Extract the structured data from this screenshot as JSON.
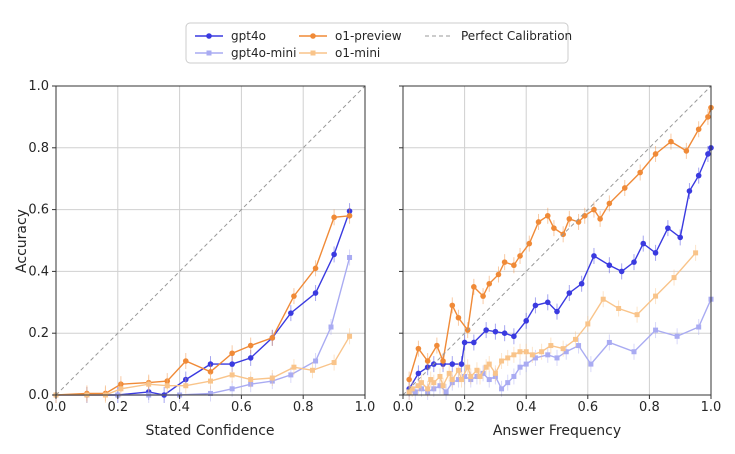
{
  "chart_data": [
    {
      "type": "line",
      "xlabel": "Stated Confidence",
      "ylabel": "Accuracy",
      "xlim": [
        0.0,
        1.0
      ],
      "ylim": [
        0.0,
        1.0
      ],
      "xticks": [
        "0.0",
        "0.2",
        "0.4",
        "0.6",
        "0.8",
        "1.0"
      ],
      "yticks": [
        "0.0",
        "0.2",
        "0.4",
        "0.6",
        "0.8",
        "1.0"
      ],
      "grid": true,
      "series": [
        {
          "name": "gpt4o",
          "color": "#3a3ae0",
          "marker": "circle",
          "x": [
            0.0,
            0.1,
            0.2,
            0.3,
            0.35,
            0.42,
            0.5,
            0.57,
            0.63,
            0.7,
            0.76,
            0.84,
            0.9,
            0.95
          ],
          "y": [
            0.0,
            0.0,
            0.0,
            0.01,
            0.0,
            0.05,
            0.1,
            0.1,
            0.12,
            0.185,
            0.265,
            0.33,
            0.455,
            0.595
          ]
        },
        {
          "name": "gpt4o-mini",
          "color": "#a9abf2",
          "marker": "square",
          "x": [
            0.0,
            0.1,
            0.2,
            0.3,
            0.4,
            0.5,
            0.57,
            0.63,
            0.7,
            0.76,
            0.84,
            0.89,
            0.95
          ],
          "y": [
            0.0,
            0.0,
            0.0,
            0.0,
            0.0,
            0.005,
            0.02,
            0.035,
            0.045,
            0.065,
            0.11,
            0.22,
            0.445
          ]
        },
        {
          "name": "o1-preview",
          "color": "#f08a37",
          "marker": "circle",
          "x": [
            0.0,
            0.1,
            0.16,
            0.21,
            0.3,
            0.36,
            0.42,
            0.5,
            0.57,
            0.63,
            0.7,
            0.77,
            0.84,
            0.9,
            0.95
          ],
          "y": [
            0.0,
            0.005,
            0.005,
            0.035,
            0.04,
            0.045,
            0.11,
            0.075,
            0.135,
            0.16,
            0.185,
            0.32,
            0.41,
            0.575,
            0.58
          ]
        },
        {
          "name": "o1-mini",
          "color": "#f9c48a",
          "marker": "square",
          "x": [
            0.0,
            0.1,
            0.16,
            0.21,
            0.3,
            0.36,
            0.42,
            0.5,
            0.57,
            0.63,
            0.7,
            0.77,
            0.83,
            0.9,
            0.95
          ],
          "y": [
            0.0,
            0.0,
            0.0,
            0.02,
            0.035,
            0.03,
            0.03,
            0.045,
            0.065,
            0.05,
            0.055,
            0.09,
            0.08,
            0.105,
            0.19
          ]
        },
        {
          "name": "Perfect Calibration",
          "color": "#999999",
          "dashed": true,
          "x": [
            0.0,
            1.0
          ],
          "y": [
            0.0,
            1.0
          ]
        }
      ]
    },
    {
      "type": "line",
      "xlabel": "Answer Frequency",
      "ylabel": "",
      "xlim": [
        0.0,
        1.0
      ],
      "ylim": [
        0.0,
        1.0
      ],
      "xticks": [
        "0.0",
        "0.2",
        "0.4",
        "0.6",
        "0.8",
        "1.0"
      ],
      "grid": true,
      "series": [
        {
          "name": "gpt4o",
          "color": "#3a3ae0",
          "marker": "circle",
          "x": [
            0.02,
            0.05,
            0.08,
            0.1,
            0.13,
            0.16,
            0.19,
            0.2,
            0.23,
            0.27,
            0.3,
            0.33,
            0.36,
            0.4,
            0.43,
            0.47,
            0.5,
            0.54,
            0.58,
            0.62,
            0.67,
            0.71,
            0.75,
            0.78,
            0.82,
            0.86,
            0.9,
            0.93,
            0.96,
            0.99,
            1.0
          ],
          "y": [
            0.02,
            0.07,
            0.09,
            0.1,
            0.1,
            0.1,
            0.1,
            0.17,
            0.17,
            0.21,
            0.205,
            0.2,
            0.19,
            0.24,
            0.29,
            0.3,
            0.27,
            0.33,
            0.36,
            0.45,
            0.42,
            0.4,
            0.43,
            0.49,
            0.46,
            0.54,
            0.51,
            0.66,
            0.71,
            0.78,
            0.8
          ]
        },
        {
          "name": "gpt4o-mini",
          "color": "#a9abf2",
          "marker": "square",
          "x": [
            0.02,
            0.04,
            0.06,
            0.08,
            0.1,
            0.12,
            0.14,
            0.16,
            0.18,
            0.2,
            0.22,
            0.24,
            0.26,
            0.28,
            0.3,
            0.32,
            0.34,
            0.36,
            0.38,
            0.4,
            0.43,
            0.47,
            0.5,
            0.53,
            0.57,
            0.61,
            0.67,
            0.75,
            0.82,
            0.89,
            0.96,
            1.0
          ],
          "y": [
            0.01,
            0.01,
            0.02,
            0.01,
            0.02,
            0.03,
            0.01,
            0.04,
            0.05,
            0.06,
            0.05,
            0.06,
            0.07,
            0.05,
            0.06,
            0.02,
            0.04,
            0.06,
            0.09,
            0.1,
            0.12,
            0.13,
            0.12,
            0.14,
            0.16,
            0.1,
            0.17,
            0.14,
            0.21,
            0.19,
            0.22,
            0.31
          ]
        },
        {
          "name": "o1-preview",
          "color": "#f08a37",
          "marker": "circle",
          "x": [
            0.02,
            0.05,
            0.08,
            0.11,
            0.13,
            0.16,
            0.18,
            0.21,
            0.23,
            0.26,
            0.28,
            0.31,
            0.33,
            0.36,
            0.38,
            0.41,
            0.44,
            0.47,
            0.49,
            0.52,
            0.54,
            0.57,
            0.59,
            0.62,
            0.64,
            0.67,
            0.72,
            0.77,
            0.82,
            0.87,
            0.92,
            0.96,
            0.99,
            1.0
          ],
          "y": [
            0.05,
            0.15,
            0.11,
            0.16,
            0.11,
            0.29,
            0.25,
            0.21,
            0.35,
            0.32,
            0.36,
            0.39,
            0.43,
            0.42,
            0.45,
            0.49,
            0.56,
            0.58,
            0.54,
            0.52,
            0.57,
            0.56,
            0.58,
            0.6,
            0.57,
            0.62,
            0.67,
            0.72,
            0.78,
            0.82,
            0.79,
            0.86,
            0.9,
            0.93
          ]
        },
        {
          "name": "o1-mini",
          "color": "#f9c48a",
          "marker": "square",
          "x": [
            0.02,
            0.03,
            0.05,
            0.06,
            0.08,
            0.09,
            0.1,
            0.12,
            0.13,
            0.15,
            0.16,
            0.18,
            0.19,
            0.21,
            0.22,
            0.24,
            0.25,
            0.27,
            0.28,
            0.3,
            0.32,
            0.34,
            0.36,
            0.38,
            0.4,
            0.42,
            0.45,
            0.48,
            0.52,
            0.56,
            0.6,
            0.65,
            0.7,
            0.76,
            0.82,
            0.88,
            0.95
          ],
          "y": [
            0.01,
            0.02,
            0.03,
            0.04,
            0.02,
            0.05,
            0.04,
            0.06,
            0.03,
            0.07,
            0.05,
            0.08,
            0.05,
            0.09,
            0.06,
            0.08,
            0.06,
            0.09,
            0.1,
            0.07,
            0.11,
            0.12,
            0.13,
            0.14,
            0.14,
            0.13,
            0.14,
            0.16,
            0.15,
            0.18,
            0.23,
            0.31,
            0.28,
            0.26,
            0.32,
            0.38,
            0.46
          ]
        },
        {
          "name": "Perfect Calibration",
          "color": "#999999",
          "dashed": true,
          "x": [
            0.0,
            1.0
          ],
          "y": [
            0.0,
            1.0
          ]
        }
      ]
    }
  ],
  "legend": [
    {
      "label": "gpt4o",
      "color": "#3a3ae0",
      "marker": "circle"
    },
    {
      "label": "gpt4o-mini",
      "color": "#a9abf2",
      "marker": "square"
    },
    {
      "label": "o1-preview",
      "color": "#f08a37",
      "marker": "circle"
    },
    {
      "label": "o1-mini",
      "color": "#f9c48a",
      "marker": "square"
    },
    {
      "label": "Perfect Calibration",
      "color": "#999999",
      "marker": "dashed-line"
    }
  ]
}
